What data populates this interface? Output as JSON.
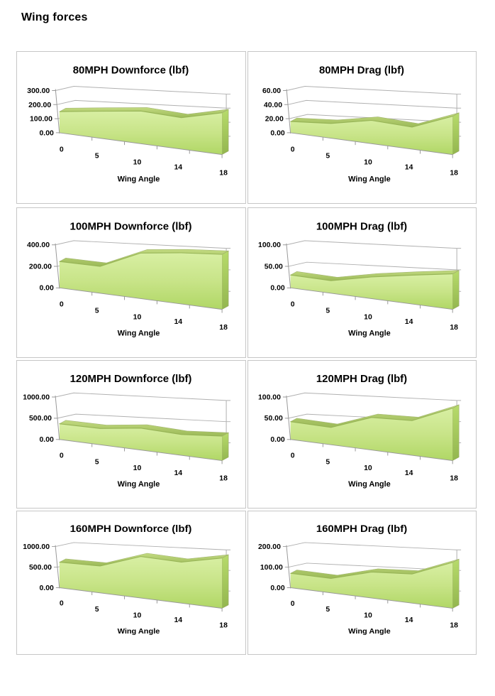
{
  "page": {
    "title": "Wing forces"
  },
  "axis": {
    "xlabel": "Wing Angle",
    "categories": [
      "0",
      "5",
      "10",
      "14",
      "18"
    ]
  },
  "colors": {
    "area_top": "#d8efa3",
    "area_mid": "#c8e488",
    "area_bottom": "#b0d765",
    "band_top": "#c2da80",
    "band_bottom": "#9cba58",
    "side_top": "#b7db6b",
    "side_bottom": "#93b64f",
    "edge": "#8fae4e",
    "gridline": "#b0b0b0",
    "axis_line": "#999999",
    "box_border": "#c6c6c6",
    "text": "#000000"
  },
  "chart_data": [
    {
      "id": "80mph-downforce",
      "type": "area",
      "title": "80MPH Downforce (lbf)",
      "xlabel": "Wing Angle",
      "categories": [
        0,
        5,
        10,
        14,
        18
      ],
      "values": [
        150,
        165,
        175,
        150,
        180
      ],
      "ylim": [
        0,
        300
      ],
      "ytick_labels": [
        "0.00",
        "100.00",
        "200.00",
        "300.00"
      ],
      "grid": true,
      "legend": false
    },
    {
      "id": "80mph-drag",
      "type": "area",
      "title": "80MPH Drag (lbf)",
      "xlabel": "Wing Angle",
      "categories": [
        0,
        5,
        10,
        14,
        18
      ],
      "values": [
        16,
        18,
        25,
        21,
        33
      ],
      "ylim": [
        0,
        60
      ],
      "ytick_labels": [
        "0.00",
        "20.00",
        "40.00",
        "60.00"
      ],
      "grid": true,
      "legend": false
    },
    {
      "id": "100mph-downforce",
      "type": "area",
      "title": "100MPH Downforce (lbf)",
      "xlabel": "Wing Angle",
      "categories": [
        0,
        5,
        10,
        14,
        18
      ],
      "values": [
        245,
        215,
        320,
        320,
        310
      ],
      "ylim": [
        0,
        400
      ],
      "ytick_labels": [
        "0.00",
        "200.00",
        "400.00"
      ],
      "grid": true,
      "legend": false
    },
    {
      "id": "100mph-drag",
      "type": "area",
      "title": "100MPH Drag (lbf)",
      "xlabel": "Wing Angle",
      "categories": [
        0,
        5,
        10,
        14,
        18
      ],
      "values": [
        30,
        25,
        38,
        45,
        50
      ],
      "ylim": [
        0,
        100
      ],
      "ytick_labels": [
        "0.00",
        "50.00",
        "100.00"
      ],
      "grid": true,
      "legend": false
    },
    {
      "id": "120mph-downforce",
      "type": "area",
      "title": "120MPH Downforce (lbf)",
      "xlabel": "Wing Angle",
      "categories": [
        0,
        5,
        10,
        14,
        18
      ],
      "values": [
        370,
        330,
        390,
        330,
        350
      ],
      "ylim": [
        0,
        1000
      ],
      "ytick_labels": [
        "0.00",
        "500.00",
        "1000.00"
      ],
      "grid": true,
      "legend": false
    },
    {
      "id": "120mph-drag",
      "type": "area",
      "title": "120MPH Drag (lbf)",
      "xlabel": "Wing Angle",
      "categories": [
        0,
        5,
        10,
        14,
        18
      ],
      "values": [
        42,
        35,
        58,
        55,
        75
      ],
      "ylim": [
        0,
        100
      ],
      "ytick_labels": [
        "0.00",
        "50.00",
        "100.00"
      ],
      "grid": true,
      "legend": false
    },
    {
      "id": "160mph-downforce",
      "type": "area",
      "title": "160MPH Downforce (lbf)",
      "xlabel": "Wing Angle",
      "categories": [
        0,
        5,
        10,
        14,
        18
      ],
      "values": [
        620,
        560,
        760,
        670,
        740
      ],
      "ylim": [
        0,
        1000
      ],
      "ytick_labels": [
        "0.00",
        "500.00",
        "1000.00"
      ],
      "grid": true,
      "legend": false
    },
    {
      "id": "160mph-drag",
      "type": "area",
      "title": "160MPH Drag (lbf)",
      "xlabel": "Wing Angle",
      "categories": [
        0,
        5,
        10,
        14,
        18
      ],
      "values": [
        70,
        60,
        95,
        95,
        135
      ],
      "ylim": [
        0,
        200
      ],
      "ytick_labels": [
        "0.00",
        "100.00",
        "200.00"
      ],
      "grid": true,
      "legend": false
    }
  ]
}
